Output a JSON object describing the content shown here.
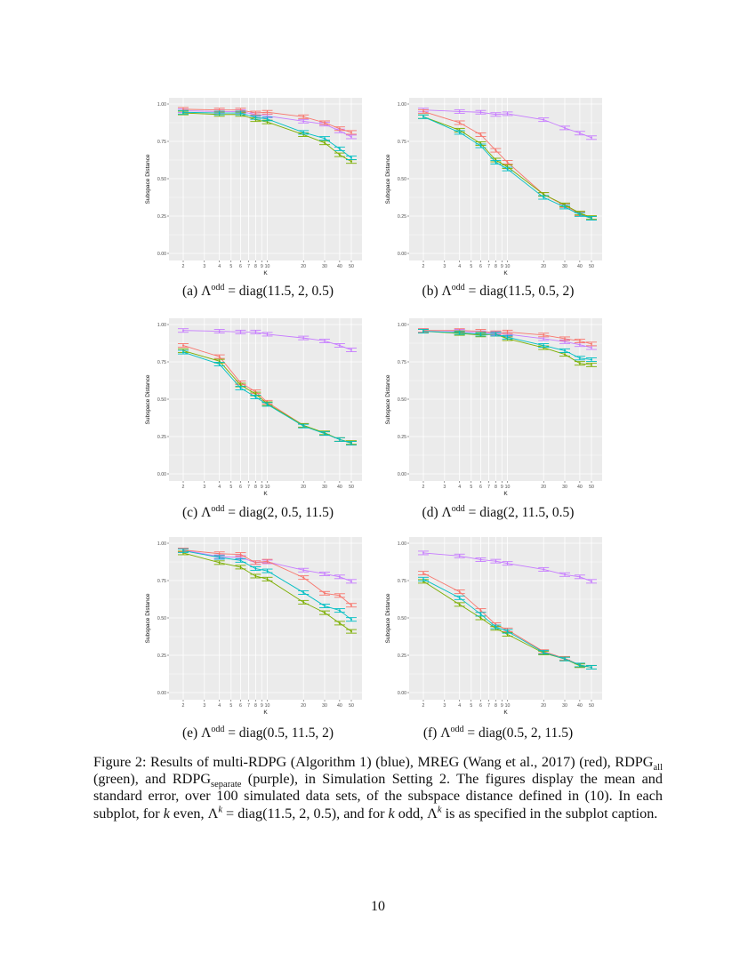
{
  "subplots": [
    {
      "label": "(a)",
      "lambda": "Λ",
      "sup": "odd",
      "expr": "= diag(11.5, 2, 0.5)"
    },
    {
      "label": "(b)",
      "lambda": "Λ",
      "sup": "odd",
      "expr": "= diag(11.5, 0.5, 2)"
    },
    {
      "label": "(c)",
      "lambda": "Λ",
      "sup": "odd",
      "expr": "= diag(2, 0.5, 11.5)"
    },
    {
      "label": "(d)",
      "lambda": "Λ",
      "sup": "odd",
      "expr": "= diag(2, 11.5, 0.5)"
    },
    {
      "label": "(e)",
      "lambda": "Λ",
      "sup": "odd",
      "expr": "= diag(0.5, 11.5, 2)"
    },
    {
      "label": "(f)",
      "lambda": "Λ",
      "sup": "odd",
      "expr": "= diag(0.5, 2, 11.5)"
    }
  ],
  "figure_caption": {
    "p1": "Figure 2: Results of multi-RDPG (Algorithm 1) (blue), MREG (Wang et al., 2017) (red), RDPG",
    "sub1": "all",
    "p2": " (green), and RDPG",
    "sub2": "separate",
    "p3": " (purple), in Simulation Setting 2. The figures display the mean and standard error, over 100 simulated data sets, of the subspace distance defined in (10). In each subplot, for ",
    "k1": "k",
    "p4": " even, Λ",
    "sup1": "k",
    "p5": " = diag(11.5, 2, 0.5), and for ",
    "k2": "k",
    "p6": " odd, Λ",
    "sup2": "k",
    "p7": " is as specified in the subplot caption."
  },
  "page_number": "10",
  "chart_data": [
    {
      "type": "line",
      "xlabel": "K",
      "ylabel": "Subspace Distance",
      "x_scale": "log",
      "ylim": [
        0,
        1
      ],
      "x_ticks": [
        2,
        3,
        4,
        5,
        6,
        7,
        8,
        9,
        10,
        20,
        30,
        40,
        50
      ],
      "y_ticks": [
        "0.00",
        "0.25",
        "0.50",
        "0.75",
        "1.00"
      ],
      "grid": true,
      "legend": "none",
      "error_bar_half_width": 0.012,
      "x": [
        2,
        4,
        6,
        8,
        10,
        20,
        30,
        40,
        50
      ],
      "series": [
        {
          "color": "#C77CFF",
          "values": [
            0.955,
            0.95,
            0.95,
            0.93,
            0.92,
            0.885,
            0.865,
            0.82,
            0.78
          ]
        },
        {
          "color": "#F8766D",
          "values": [
            0.965,
            0.96,
            0.96,
            0.94,
            0.945,
            0.915,
            0.875,
            0.835,
            0.81
          ]
        },
        {
          "color": "#7CAE00",
          "values": [
            0.94,
            0.93,
            0.93,
            0.895,
            0.88,
            0.795,
            0.74,
            0.66,
            0.615
          ]
        },
        {
          "color": "#00BFC4",
          "values": [
            0.945,
            0.94,
            0.94,
            0.91,
            0.9,
            0.81,
            0.77,
            0.7,
            0.64
          ]
        }
      ]
    },
    {
      "type": "line",
      "xlabel": "K",
      "ylabel": "Subspace Distance",
      "x_scale": "log",
      "ylim": [
        0,
        1
      ],
      "x_ticks": [
        2,
        3,
        4,
        5,
        6,
        7,
        8,
        9,
        10,
        20,
        30,
        40,
        50
      ],
      "y_ticks": [
        "0.00",
        "0.25",
        "0.50",
        "0.75",
        "1.00"
      ],
      "grid": true,
      "legend": "none",
      "error_bar_half_width": 0.012,
      "x": [
        2,
        4,
        6,
        8,
        10,
        20,
        30,
        40,
        50
      ],
      "series": [
        {
          "color": "#C77CFF",
          "values": [
            0.96,
            0.95,
            0.945,
            0.93,
            0.935,
            0.895,
            0.84,
            0.805,
            0.775
          ]
        },
        {
          "color": "#F8766D",
          "values": [
            0.95,
            0.875,
            0.795,
            0.69,
            0.61,
            0.395,
            0.32,
            0.265,
            0.235
          ]
        },
        {
          "color": "#7CAE00",
          "values": [
            0.915,
            0.825,
            0.735,
            0.625,
            0.58,
            0.395,
            0.325,
            0.27,
            0.24
          ]
        },
        {
          "color": "#00BFC4",
          "values": [
            0.915,
            0.81,
            0.72,
            0.61,
            0.565,
            0.375,
            0.31,
            0.26,
            0.235
          ]
        }
      ]
    },
    {
      "type": "line",
      "xlabel": "K",
      "ylabel": "Subspace Distance",
      "x_scale": "log",
      "ylim": [
        0,
        1
      ],
      "x_ticks": [
        2,
        3,
        4,
        5,
        6,
        7,
        8,
        9,
        10,
        20,
        30,
        40,
        50
      ],
      "y_ticks": [
        "0.00",
        "0.25",
        "0.50",
        "0.75",
        "1.00"
      ],
      "grid": true,
      "legend": "none",
      "error_bar_half_width": 0.012,
      "x": [
        2,
        4,
        6,
        8,
        10,
        20,
        30,
        40,
        50
      ],
      "series": [
        {
          "color": "#C77CFF",
          "values": [
            0.96,
            0.955,
            0.95,
            0.95,
            0.935,
            0.91,
            0.89,
            0.86,
            0.83
          ]
        },
        {
          "color": "#F8766D",
          "values": [
            0.86,
            0.785,
            0.61,
            0.55,
            0.48,
            0.325,
            0.27,
            0.23,
            0.205
          ]
        },
        {
          "color": "#7CAE00",
          "values": [
            0.825,
            0.755,
            0.595,
            0.535,
            0.47,
            0.325,
            0.275,
            0.23,
            0.21
          ]
        },
        {
          "color": "#00BFC4",
          "values": [
            0.815,
            0.735,
            0.575,
            0.515,
            0.465,
            0.32,
            0.27,
            0.23,
            0.205
          ]
        }
      ]
    },
    {
      "type": "line",
      "xlabel": "K",
      "ylabel": "Subspace Distance",
      "x_scale": "log",
      "ylim": [
        0,
        1
      ],
      "x_ticks": [
        2,
        3,
        4,
        5,
        6,
        7,
        8,
        9,
        10,
        20,
        30,
        40,
        50
      ],
      "y_ticks": [
        "0.00",
        "0.25",
        "0.50",
        "0.75",
        "1.00"
      ],
      "grid": true,
      "legend": "none",
      "error_bar_half_width": 0.012,
      "x": [
        2,
        4,
        6,
        8,
        10,
        20,
        30,
        40,
        50
      ],
      "series": [
        {
          "color": "#C77CFF",
          "values": [
            0.96,
            0.955,
            0.945,
            0.94,
            0.935,
            0.905,
            0.885,
            0.865,
            0.845
          ]
        },
        {
          "color": "#F8766D",
          "values": [
            0.96,
            0.96,
            0.955,
            0.945,
            0.95,
            0.93,
            0.905,
            0.89,
            0.87
          ]
        },
        {
          "color": "#7CAE00",
          "values": [
            0.955,
            0.94,
            0.93,
            0.935,
            0.905,
            0.845,
            0.8,
            0.74,
            0.73
          ]
        },
        {
          "color": "#00BFC4",
          "values": [
            0.955,
            0.945,
            0.935,
            0.935,
            0.915,
            0.86,
            0.825,
            0.775,
            0.765
          ]
        }
      ]
    },
    {
      "type": "line",
      "xlabel": "K",
      "ylabel": "Subspace Distance",
      "x_scale": "log",
      "ylim": [
        0,
        1
      ],
      "x_ticks": [
        2,
        3,
        4,
        5,
        6,
        7,
        8,
        9,
        10,
        20,
        30,
        40,
        50
      ],
      "y_ticks": [
        "0.00",
        "0.25",
        "0.50",
        "0.75",
        "1.00"
      ],
      "grid": true,
      "legend": "none",
      "error_bar_half_width": 0.012,
      "x": [
        2,
        4,
        6,
        8,
        10,
        20,
        30,
        40,
        50
      ],
      "series": [
        {
          "color": "#C77CFF",
          "values": [
            0.955,
            0.91,
            0.905,
            0.87,
            0.875,
            0.82,
            0.795,
            0.775,
            0.745
          ]
        },
        {
          "color": "#F8766D",
          "values": [
            0.955,
            0.93,
            0.925,
            0.87,
            0.88,
            0.77,
            0.665,
            0.65,
            0.585
          ]
        },
        {
          "color": "#7CAE00",
          "values": [
            0.935,
            0.87,
            0.84,
            0.78,
            0.76,
            0.605,
            0.535,
            0.465,
            0.41
          ]
        },
        {
          "color": "#00BFC4",
          "values": [
            0.95,
            0.905,
            0.885,
            0.83,
            0.815,
            0.67,
            0.58,
            0.55,
            0.49
          ]
        }
      ]
    },
    {
      "type": "line",
      "xlabel": "K",
      "ylabel": "Subspace Distance",
      "x_scale": "log",
      "ylim": [
        0,
        1
      ],
      "x_ticks": [
        2,
        3,
        4,
        5,
        6,
        7,
        8,
        9,
        10,
        20,
        30,
        40,
        50
      ],
      "y_ticks": [
        "0.00",
        "0.25",
        "0.50",
        "0.75",
        "1.00"
      ],
      "grid": true,
      "legend": "none",
      "error_bar_half_width": 0.012,
      "x": [
        2,
        4,
        6,
        8,
        10,
        20,
        30,
        40,
        50
      ],
      "series": [
        {
          "color": "#C77CFF",
          "values": [
            0.935,
            0.915,
            0.89,
            0.88,
            0.865,
            0.825,
            0.79,
            0.775,
            0.745
          ]
        },
        {
          "color": "#F8766D",
          "values": [
            0.8,
            0.675,
            0.55,
            0.455,
            0.42,
            0.275,
            0.23,
            0.185,
            0.17
          ]
        },
        {
          "color": "#7CAE00",
          "values": [
            0.745,
            0.59,
            0.5,
            0.43,
            0.39,
            0.265,
            0.225,
            0.18,
            0.17
          ]
        },
        {
          "color": "#00BFC4",
          "values": [
            0.76,
            0.635,
            0.525,
            0.44,
            0.41,
            0.27,
            0.225,
            0.185,
            0.17
          ]
        }
      ]
    }
  ]
}
